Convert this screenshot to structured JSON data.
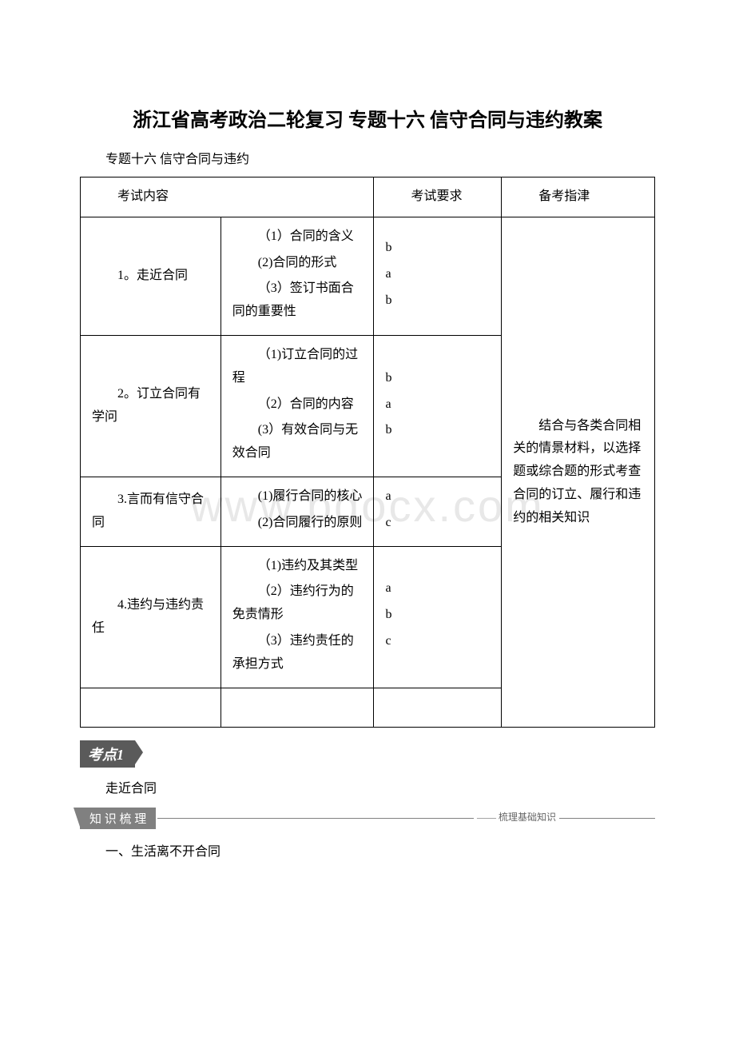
{
  "watermark": "www.bdocx.com",
  "title": "浙江省高考政治二轮复习 专题十六 信守合同与违约教案",
  "subtitle": "专题十六 信守合同与违约",
  "table": {
    "headers": {
      "col1": "考试内容",
      "col3": "考试要求",
      "col4": "备考指津"
    },
    "guide": "结合与各类合同相关的情景材料，以选择题或综合题的形式考查合同的订立、履行和违约的相关知识",
    "rows": [
      {
        "topic": "1。走近合同",
        "items": [
          "（1）合同的含义",
          "(2)合同的形式",
          "（3）签订书面合同的重要性"
        ],
        "reqs": [
          "b",
          "a",
          "b"
        ]
      },
      {
        "topic": "2。订立合同有学问",
        "items": [
          "（1)订立合同的过程",
          "（2）合同的内容",
          "(3）有效合同与无效合同"
        ],
        "reqs": [
          "b",
          "a",
          "b"
        ]
      },
      {
        "topic": "3.言而有信守合同",
        "items": [
          "(1)履行合同的核心",
          "(2)合同履行的原则"
        ],
        "reqs": [
          "a",
          "c"
        ]
      },
      {
        "topic": "4.违约与违约责任",
        "items": [
          "（1)违约及其类型",
          "（2）违约行为的免责情形",
          "（3）违约责任的承担方式"
        ],
        "reqs": [
          "a",
          "b",
          "c"
        ]
      }
    ]
  },
  "kaodian_label": "考点1",
  "kaodian_topic": "走近合同",
  "knowledge_tab": "知 识 梳 理",
  "knowledge_caption": "—— 梳理基础知识",
  "body_text": "一、生活离不开合同"
}
